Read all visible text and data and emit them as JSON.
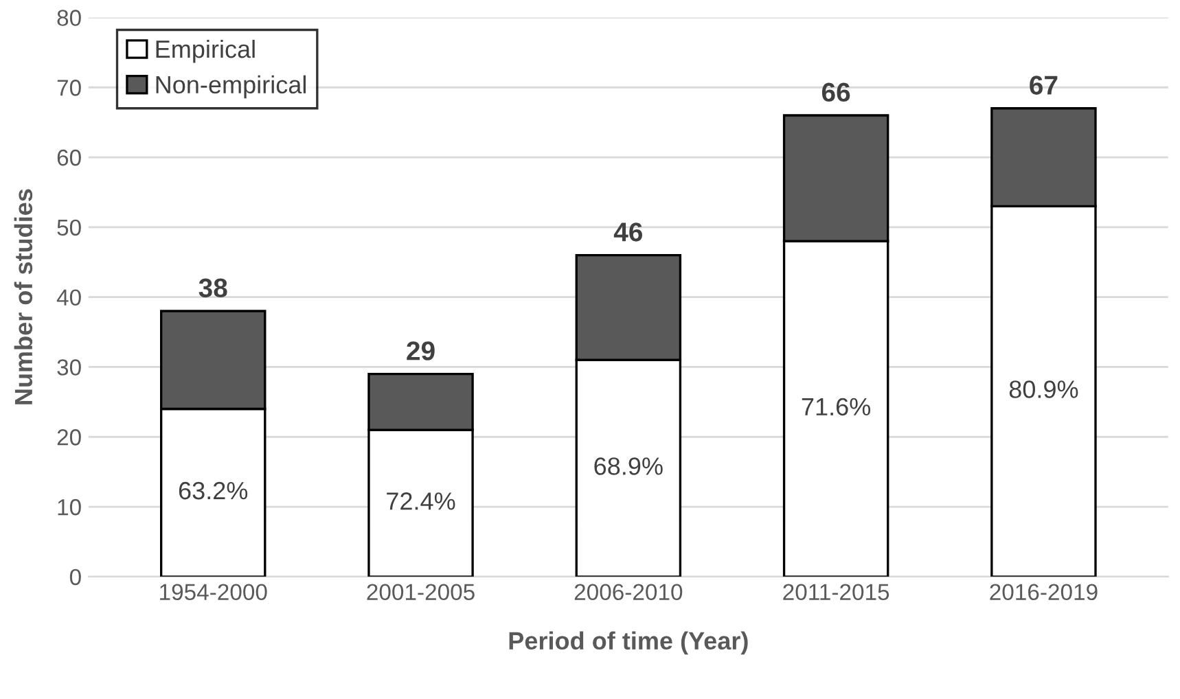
{
  "chart_data": {
    "type": "bar",
    "stacked": true,
    "xlabel": "Period of time (Year)",
    "ylabel": "Number of studies",
    "categories": [
      "1954-2000",
      "2001-2005",
      "2006-2010",
      "2011-2015",
      "2016-2019"
    ],
    "series": [
      {
        "name": "Empirical",
        "color": "#ffffff",
        "values": [
          24,
          21,
          31,
          48,
          53
        ]
      },
      {
        "name": "Non-empirical",
        "color": "#595959",
        "values": [
          14,
          8,
          15,
          18,
          14
        ]
      }
    ],
    "totals": [
      "38",
      "29",
      "46",
      "66",
      "67"
    ],
    "annotations": [
      "63.2%",
      "72.4%",
      "68.9%",
      "71.6%",
      "80.9%"
    ],
    "ylim": [
      0,
      80
    ],
    "yticks": [
      0,
      10,
      20,
      30,
      40,
      50,
      60,
      70,
      80
    ],
    "grid": "y",
    "legend": "top left"
  }
}
